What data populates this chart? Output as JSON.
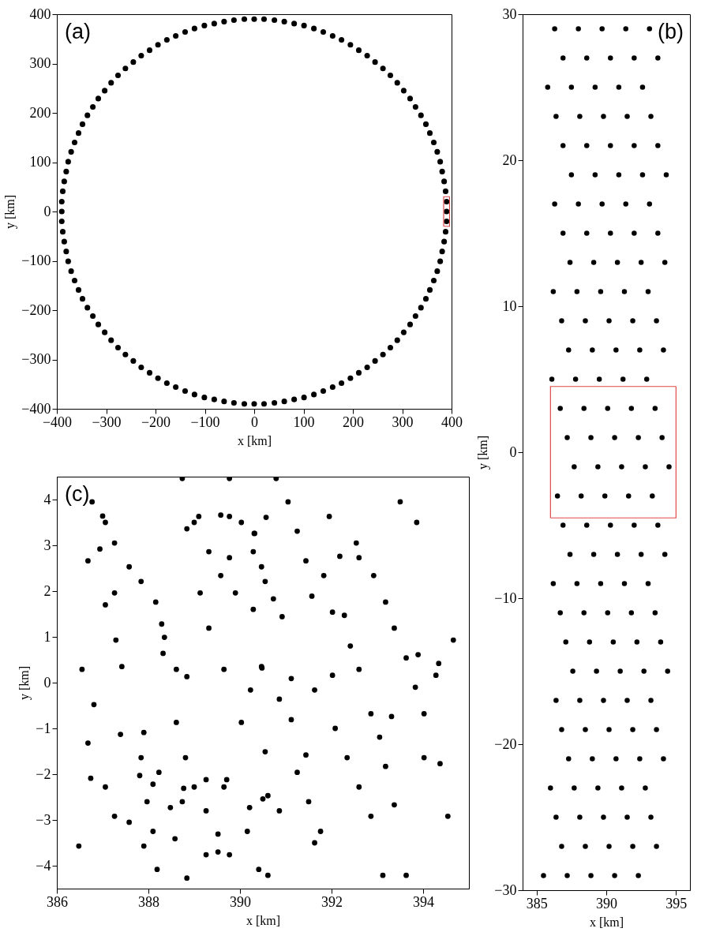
{
  "chart_data": [
    {
      "type": "scatter",
      "title": "(a)",
      "xlabel": "x [km]",
      "ylabel": "y [km]",
      "xlim": [
        -400,
        400
      ],
      "ylim": [
        -400,
        400
      ],
      "xticks": [
        -400,
        -300,
        -200,
        -100,
        0,
        100,
        200,
        300,
        400
      ],
      "yticks": [
        -400,
        -300,
        -200,
        -100,
        0,
        100,
        200,
        300,
        400
      ],
      "marker": "circle",
      "series": [
        {
          "color": "#000000",
          "x": [
            390,
            390,
            388,
            385,
            381,
            377,
            371,
            364,
            356,
            348,
            338,
            327,
            316,
            303,
            290,
            276,
            261,
            245,
            229,
            212,
            195,
            177,
            159,
            140,
            121,
            101,
            81,
            61,
            41,
            20,
            0,
            -20,
            -41,
            -61,
            -81,
            -101,
            -121,
            -140,
            -159,
            -177,
            -195,
            -212,
            -229,
            -245,
            -261,
            -276,
            -290,
            -303,
            -316,
            -327,
            -338,
            -348,
            -356,
            -364,
            -371,
            -377,
            -381,
            -385,
            -388,
            -390,
            -390,
            -390,
            -388,
            -385,
            -381,
            -377,
            -371,
            -364,
            -356,
            -348,
            -338,
            -327,
            -316,
            -303,
            -290,
            -276,
            -261,
            -245,
            -229,
            -212,
            -195,
            -177,
            -159,
            -140,
            -121,
            -101,
            -81,
            -61,
            -41,
            -20,
            0,
            20,
            41,
            61,
            81,
            101,
            121,
            140,
            159,
            177,
            195,
            212,
            229,
            245,
            261,
            276,
            290,
            303,
            316,
            327,
            338,
            348,
            356,
            364,
            371,
            377,
            381,
            385,
            388,
            390
          ],
          "values": [
            0,
            20,
            41,
            61,
            81,
            101,
            121,
            140,
            159,
            177,
            195,
            212,
            229,
            245,
            261,
            276,
            290,
            303,
            316,
            327,
            338,
            348,
            356,
            364,
            371,
            377,
            381,
            385,
            388,
            390,
            390,
            390,
            388,
            385,
            381,
            377,
            371,
            364,
            356,
            348,
            338,
            327,
            316,
            303,
            290,
            276,
            261,
            245,
            229,
            212,
            195,
            177,
            159,
            140,
            121,
            101,
            81,
            61,
            41,
            20,
            0,
            -20,
            -41,
            -61,
            -81,
            -101,
            -121,
            -140,
            -159,
            -177,
            -195,
            -212,
            -229,
            -245,
            -261,
            -276,
            -290,
            -303,
            -316,
            -327,
            -338,
            -348,
            -356,
            -364,
            -371,
            -377,
            -381,
            -385,
            -388,
            -390,
            -390,
            -390,
            -388,
            -385,
            -381,
            -377,
            -371,
            -364,
            -356,
            -348,
            -338,
            -327,
            -316,
            -303,
            -290,
            -276,
            -261,
            -245,
            -229,
            -212,
            -195,
            -177,
            -159,
            -140,
            -121,
            -101,
            -81,
            -61,
            -41,
            -20
          ]
        },
        {
          "type": "line",
          "marker": "none",
          "color": "#e04848",
          "x": [
            384,
            396,
            396
          ],
          "values": [
            -30,
            -30,
            30
          ]
        },
        {
          "type": "line",
          "marker": "none",
          "color": "#e04848",
          "x": [
            396,
            384,
            384
          ],
          "values": [
            30,
            30,
            -30
          ]
        }
      ]
    },
    {
      "type": "scatter",
      "title": "(b)",
      "xlabel": "x [km]",
      "ylabel": "y [km]",
      "xlim": [
        384,
        396
      ],
      "ylim": [
        -30,
        30
      ],
      "xticks": [
        385,
        390,
        395
      ],
      "yticks": [
        -30,
        -20,
        -10,
        0,
        10,
        20,
        30
      ],
      "marker": "circle",
      "series": [
        {
          "color": "#000000",
          "x": [
            386.3,
            388.0,
            389.7,
            391.4,
            393.1,
            386.9,
            388.6,
            390.3,
            392.0,
            393.7,
            385.8,
            387.5,
            389.2,
            390.9,
            392.6,
            386.4,
            388.1,
            389.8,
            391.5,
            393.2,
            386.9,
            388.6,
            390.3,
            392.0,
            393.7,
            387.5,
            389.2,
            390.9,
            392.6,
            394.3,
            386.3,
            388.0,
            389.7,
            391.4,
            393.1,
            386.9,
            388.6,
            390.3,
            392.0,
            393.7,
            387.4,
            389.1,
            390.8,
            392.5,
            394.2,
            386.2,
            387.9,
            389.6,
            391.3,
            393.0,
            386.8,
            388.5,
            390.2,
            391.9,
            393.6,
            387.3,
            389.0,
            390.7,
            392.4,
            394.1,
            386.1,
            387.8,
            389.5,
            391.2,
            392.9,
            386.7,
            388.4,
            390.1,
            391.8,
            393.5,
            387.2,
            388.9,
            390.6,
            392.3,
            394.0,
            387.7,
            389.4,
            391.1,
            392.8,
            394.5,
            386.5,
            388.2,
            389.9,
            391.6,
            393.3,
            386.9,
            388.6,
            390.3,
            392.0,
            393.7,
            387.4,
            389.1,
            390.8,
            392.5,
            394.2,
            386.2,
            387.9,
            389.6,
            391.3,
            393.0,
            386.7,
            388.4,
            390.1,
            391.8,
            393.5,
            387.1,
            388.8,
            390.5,
            392.2,
            393.9,
            387.6,
            389.3,
            391.0,
            392.7,
            394.4,
            386.4,
            388.1,
            389.8,
            391.5,
            393.2,
            386.8,
            388.5,
            390.2,
            391.9,
            393.6,
            387.3,
            389.0,
            390.7,
            392.4,
            394.1,
            386.0,
            387.7,
            389.4,
            391.1,
            392.8,
            386.4,
            388.1,
            389.8,
            391.5,
            393.2,
            386.8,
            388.5,
            390.2,
            391.9,
            393.6,
            385.5,
            387.2,
            388.9,
            390.6,
            392.3
          ],
          "values": [
            29,
            29,
            29,
            29,
            29,
            27,
            27,
            27,
            27,
            27,
            25,
            25,
            25,
            25,
            25,
            23,
            23,
            23,
            23,
            23,
            21,
            21,
            21,
            21,
            21,
            19,
            19,
            19,
            19,
            19,
            17,
            17,
            17,
            17,
            17,
            15,
            15,
            15,
            15,
            15,
            13,
            13,
            13,
            13,
            13,
            11,
            11,
            11,
            11,
            11,
            9,
            9,
            9,
            9,
            9,
            7,
            7,
            7,
            7,
            7,
            5,
            5,
            5,
            5,
            5,
            3,
            3,
            3,
            3,
            3,
            1,
            1,
            1,
            1,
            1,
            -1,
            -1,
            -1,
            -1,
            -1,
            -3,
            -3,
            -3,
            -3,
            -3,
            -5,
            -5,
            -5,
            -5,
            -5,
            -7,
            -7,
            -7,
            -7,
            -7,
            -9,
            -9,
            -9,
            -9,
            -9,
            -11,
            -11,
            -11,
            -11,
            -11,
            -13,
            -13,
            -13,
            -13,
            -13,
            -15,
            -15,
            -15,
            -15,
            -15,
            -17,
            -17,
            -17,
            -17,
            -17,
            -19,
            -19,
            -19,
            -19,
            -19,
            -21,
            -21,
            -21,
            -21,
            -21,
            -23,
            -23,
            -23,
            -23,
            -23,
            -25,
            -25,
            -25,
            -25,
            -25,
            -27,
            -27,
            -27,
            -27,
            -27,
            -29,
            -29,
            -29,
            -29,
            -29
          ]
        },
        {
          "type": "line",
          "marker": "none",
          "color": "#e04848",
          "x": [
            386,
            395,
            395
          ],
          "values": [
            -4.5,
            -4.5,
            4.5
          ]
        },
        {
          "type": "line",
          "marker": "none",
          "color": "#e04848",
          "x": [
            395,
            386,
            386
          ],
          "values": [
            4.5,
            4.5,
            -4.5
          ]
        }
      ]
    },
    {
      "type": "scatter",
      "title": "(c)",
      "xlabel": "x [km]",
      "ylabel": "y [km]",
      "xlim": [
        386,
        395
      ],
      "ylim": [
        -4.5,
        4.5
      ],
      "xticks": [
        386,
        388,
        390,
        392,
        394
      ],
      "yticks": [
        -4,
        -3,
        -2,
        -1,
        0,
        1,
        2,
        3,
        4
      ],
      "marker": "circle",
      "series": [
        {
          "color": "#000000",
          "x": [
            386.77,
            387.06,
            387.26,
            387.58,
            387.84,
            388.16,
            388.35,
            388.61,
            387.0,
            386.68,
            387.26,
            387.29,
            388.32,
            387.42,
            388.84,
            388.74,
            389.0,
            389.13,
            389.32,
            389.65,
            390.03,
            389.58,
            389.77,
            390.32,
            388.84,
            389.1,
            389.32,
            389.77,
            389.58,
            390.29,
            389.9,
            389.77,
            390.03,
            390.29,
            390.55,
            390.23,
            390.48,
            387.39,
            387.84,
            387.97,
            388.1,
            388.19,
            387.9,
            388.23,
            388.74,
            387.81,
            388.1,
            389.26,
            389.71,
            388.77,
            388.48,
            388.61,
            388.81,
            389.0,
            389.26,
            389.52,
            389.77,
            389.26,
            389.52,
            388.58,
            388.84,
            386.68,
            387.06,
            387.26,
            386.74,
            387.58,
            387.9,
            389.65,
            390.16,
            390.61,
            390.55,
            390.61,
            388.29,
            386.94,
            386.55,
            386.48,
            386.81,
            387.06,
            390.57,
            390.31,
            390.47,
            390.73,
            390.92,
            392.02,
            392.28,
            390.79,
            391.05,
            391.25,
            391.44,
            391.57,
            391.95,
            392.54,
            392.18,
            391.83,
            392.6,
            392.92,
            393.18,
            393.37,
            393.63,
            393.83,
            394.02,
            393.86,
            393.5,
            394.28,
            393.89,
            393.31,
            394.34,
            392.02,
            391.12,
            391.63,
            390.47,
            390.86,
            391.12,
            391.44,
            392.41,
            392.6,
            392.86,
            393.05,
            393.18,
            392.08,
            392.34,
            392.6,
            392.86,
            393.12,
            391.25,
            391.5,
            391.76,
            390.5,
            390.86,
            390.41,
            393.63,
            394.37,
            393.37,
            391.63,
            390.21,
            394.02,
            394.54,
            394.66
          ],
          "values": [
            3.95,
            3.5,
            3.05,
            2.53,
            2.21,
            1.76,
            0.99,
            0.29,
            3.64,
            2.66,
            1.96,
            0.93,
            0.64,
            0.35,
            0.13,
            4.46,
            3.5,
            1.96,
            1.19,
            0.29,
            -0.87,
            3.66,
            3.63,
            3.26,
            3.36,
            3.63,
            2.86,
            2.73,
            2.34,
            1.6,
            1.96,
            4.46,
            3.5,
            2.86,
            2.21,
            -0.16,
            0.32,
            -1.13,
            -1.64,
            -2.6,
            -3.25,
            -4.08,
            -1.09,
            -1.96,
            -2.6,
            -2.03,
            -2.22,
            -2.12,
            -2.12,
            -2.31,
            -2.73,
            -0.87,
            -1.64,
            -2.28,
            -2.8,
            -3.31,
            -3.76,
            -3.76,
            -3.7,
            -3.41,
            -4.27,
            -1.32,
            -2.28,
            -2.92,
            -2.09,
            -3.05,
            -3.57,
            -2.28,
            -3.25,
            -4.21,
            -1.51,
            -2.47,
            1.28,
            2.92,
            0.29,
            -3.57,
            -0.48,
            1.7,
            3.61,
            3.26,
            2.53,
            1.83,
            1.44,
            1.54,
            1.47,
            4.46,
            3.95,
            3.31,
            2.66,
            1.89,
            3.63,
            3.05,
            2.76,
            2.34,
            2.73,
            2.34,
            1.76,
            1.19,
            0.54,
            -0.1,
            -0.68,
            3.5,
            3.95,
            0.16,
            0.61,
            -0.74,
            0.42,
            0.16,
            0.09,
            -0.16,
            0.35,
            -0.36,
            -0.81,
            -1.58,
            0.8,
            0.29,
            -0.68,
            -1.19,
            -1.83,
            -1.0,
            -1.64,
            -2.28,
            -2.92,
            -4.21,
            -1.96,
            -2.6,
            -3.25,
            -2.54,
            -2.8,
            -4.08,
            -4.21,
            -1.77,
            -2.67,
            -3.5,
            -2.73,
            -1.64,
            -2.92,
            0.93
          ]
        }
      ]
    }
  ]
}
